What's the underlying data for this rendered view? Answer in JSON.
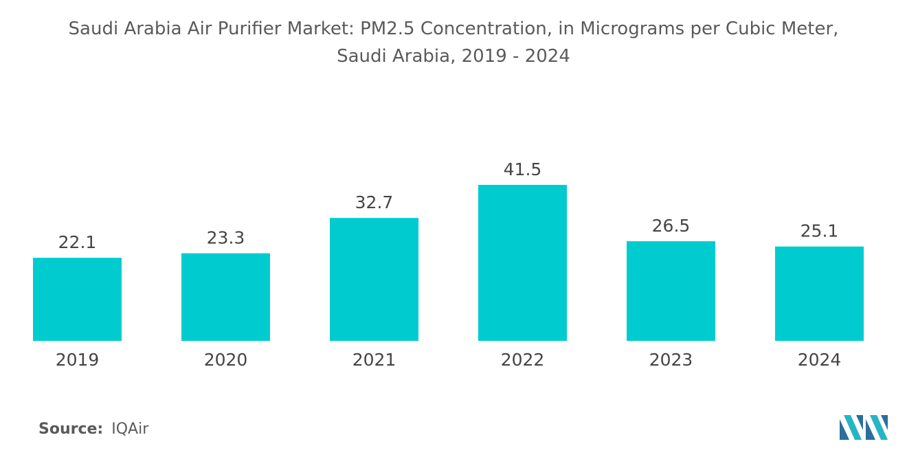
{
  "chart_data": {
    "type": "bar",
    "title_line1": "Saudi Arabia Air Purifier Market: PM2.5 Concentration, in Micrograms per Cubic Meter,",
    "title_line2": "Saudi Arabia, 2019 - 2024",
    "categories": [
      "2019",
      "2020",
      "2021",
      "2022",
      "2023",
      "2024"
    ],
    "values": [
      22.1,
      23.3,
      32.7,
      41.5,
      26.5,
      25.1
    ],
    "value_labels": [
      "22.1",
      "23.3",
      "32.7",
      "41.5",
      "26.5",
      "25.1"
    ],
    "xlabel": "",
    "ylabel": "",
    "ylim": [
      0,
      45
    ],
    "grid": false,
    "legend": "none",
    "bar_color": "#00ccd0"
  },
  "source": {
    "label": "Source:",
    "value": "IQAir"
  },
  "logo": {
    "icon": "mordor-logo-icon",
    "colors": [
      "#2a6f9e",
      "#26b5c4"
    ]
  }
}
